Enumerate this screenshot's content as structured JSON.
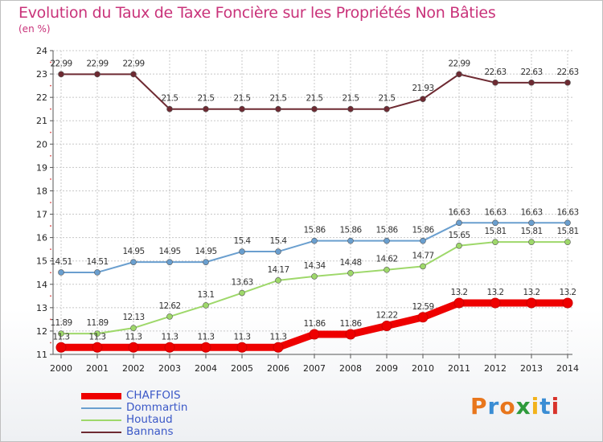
{
  "title": "Evolution du Taux de Taxe Foncière sur les Propriétés Non Bâties",
  "unit_label": "(en %)",
  "logo": {
    "text": "Proxiti",
    "colors": [
      "#e8761c",
      "#3a8dd4",
      "#e8761c",
      "#2e9a3b",
      "#f2b21b",
      "#3a8dd4",
      "#d8332b"
    ]
  },
  "chart_data": {
    "type": "line",
    "x": [
      2000,
      2001,
      2002,
      2003,
      2004,
      2005,
      2006,
      2007,
      2008,
      2009,
      2010,
      2011,
      2012,
      2013,
      2014
    ],
    "ylim": [
      11,
      24
    ],
    "yticks": [
      11,
      12,
      13,
      14,
      15,
      16,
      17,
      18,
      19,
      20,
      21,
      22,
      23,
      24
    ],
    "grid": true,
    "legend_position": "bottom-left",
    "series": [
      {
        "name": "CHAFFOIS",
        "color": "#ee0000",
        "values": [
          11.3,
          11.3,
          11.3,
          11.3,
          11.3,
          11.3,
          11.3,
          11.86,
          11.86,
          12.22,
          12.59,
          13.2,
          13.2,
          13.2,
          13.2
        ],
        "labels": [
          "11.3",
          "11.3",
          "11.3",
          "11.3",
          "11.3",
          "11.3",
          "11.3",
          "11.86",
          "11.86",
          "12.22",
          "12.59",
          "13.2",
          "13.2",
          "13.2",
          "13.2"
        ]
      },
      {
        "name": "Dommartin",
        "color": "#6a9fcf",
        "values": [
          14.51,
          14.51,
          14.95,
          14.95,
          14.95,
          15.4,
          15.4,
          15.86,
          15.86,
          15.86,
          15.86,
          16.63,
          16.63,
          16.63,
          16.63
        ],
        "labels": [
          "14.51",
          "14.51",
          "14.95",
          "14.95",
          "14.95",
          "15.4",
          "15.4",
          "15.86",
          "15.86",
          "15.86",
          "15.86",
          "16.63",
          "16.63",
          "16.63",
          "16.63"
        ]
      },
      {
        "name": "Houtaud",
        "color": "#9ed86a",
        "values": [
          11.89,
          11.89,
          12.13,
          12.62,
          13.1,
          13.63,
          14.17,
          14.34,
          14.48,
          14.62,
          14.77,
          15.65,
          15.81,
          15.81,
          15.81
        ],
        "labels": [
          "11.89",
          "11.89",
          "12.13",
          "12.62",
          "13.1",
          "13.63",
          "14.17",
          "14.34",
          "14.48",
          "14.62",
          "14.77",
          "15.65",
          "15.81",
          "15.81",
          "15.81"
        ]
      },
      {
        "name": "Bannans",
        "color": "#6e2a32",
        "values": [
          22.99,
          22.99,
          22.99,
          21.5,
          21.5,
          21.5,
          21.5,
          21.5,
          21.5,
          21.5,
          21.93,
          22.99,
          22.63,
          22.63,
          22.63
        ],
        "labels": [
          "22.99",
          "22.99",
          "22.99",
          "21.5",
          "21.5",
          "21.5",
          "21.5",
          "21.5",
          "21.5",
          "21.5",
          "21.93",
          "22.99",
          "22.63",
          "22.63",
          "22.63"
        ]
      }
    ]
  }
}
